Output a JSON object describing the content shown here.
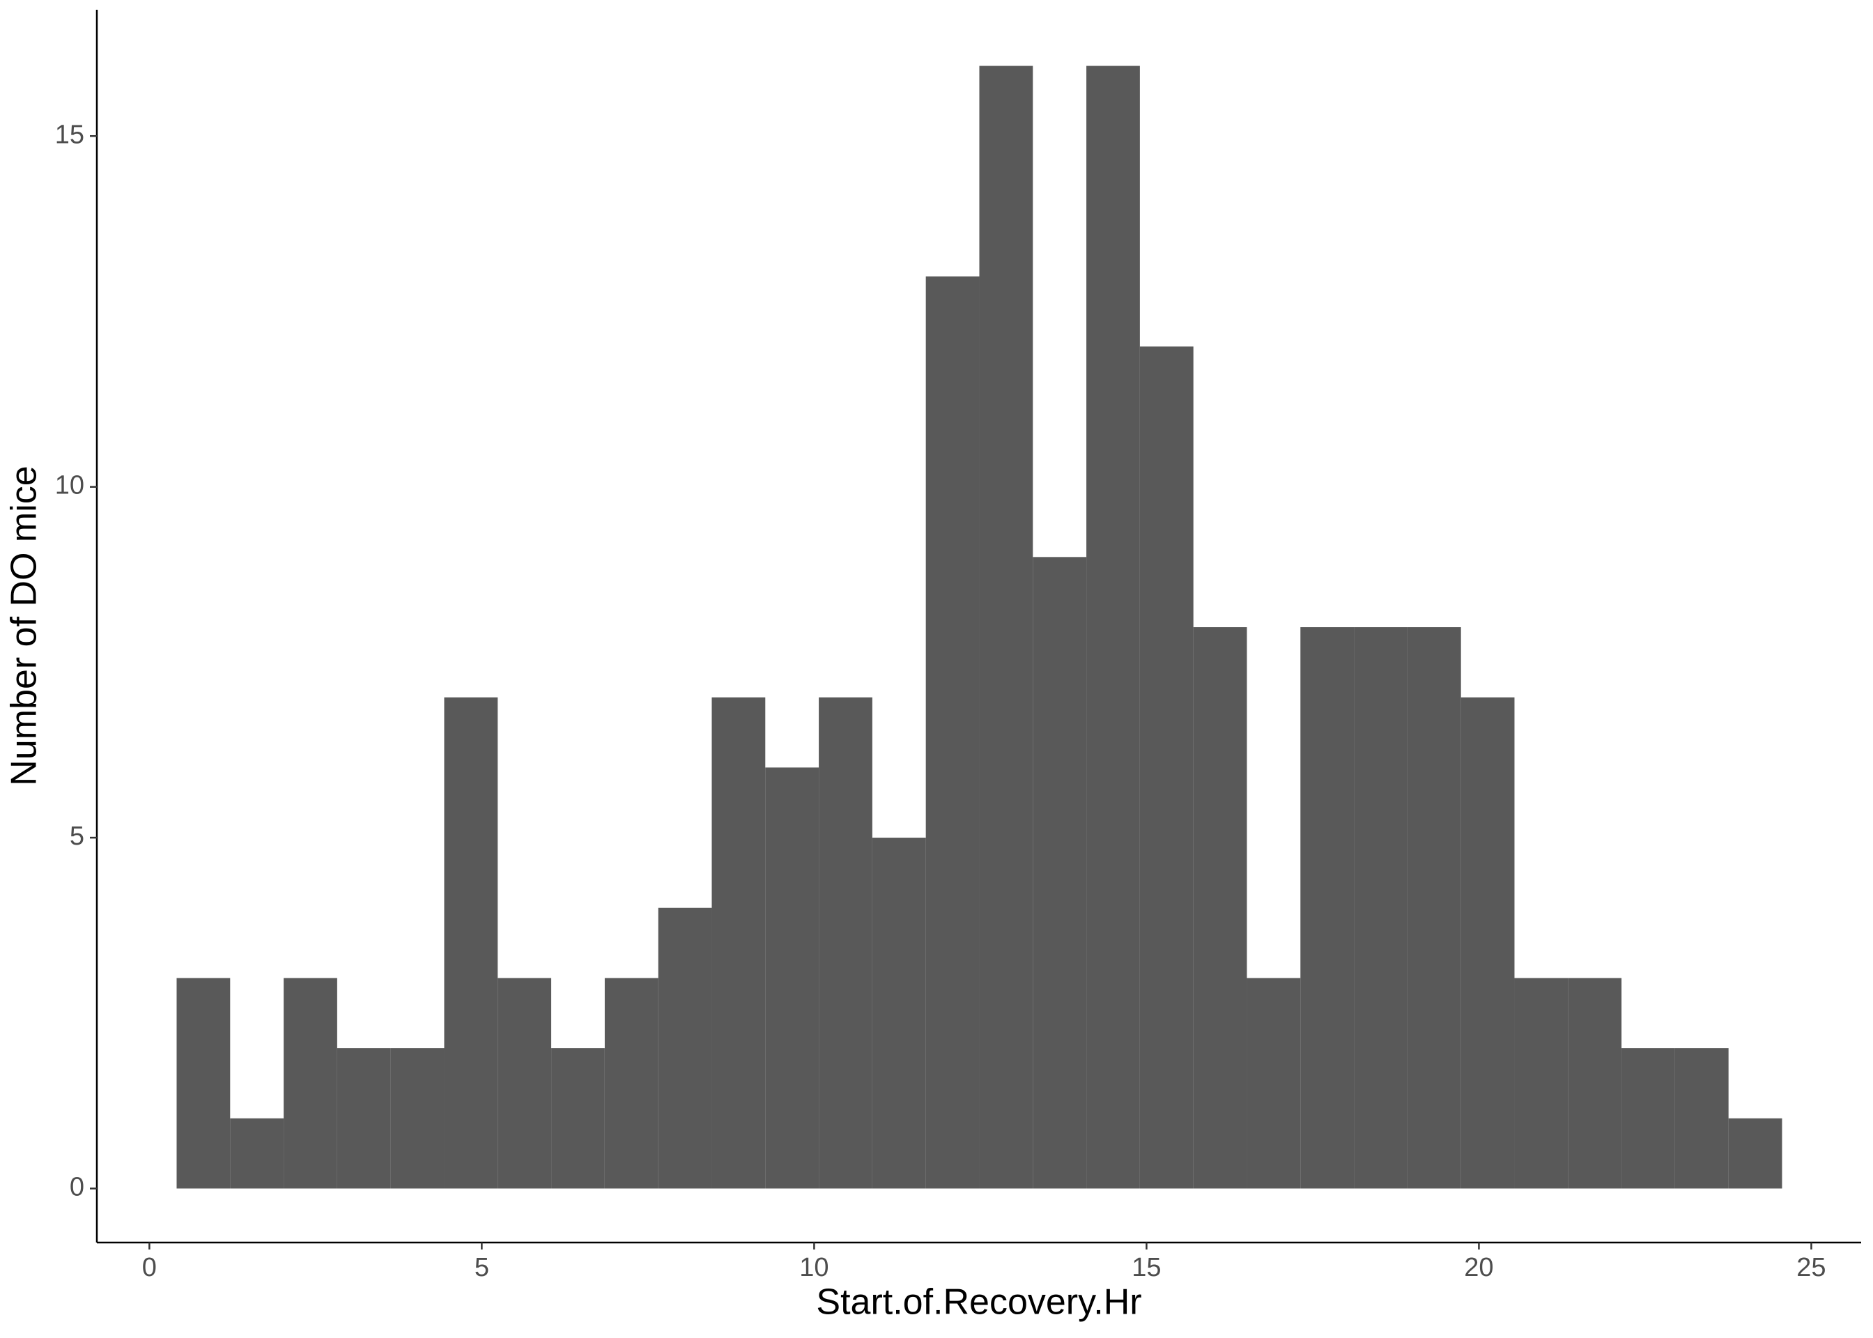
{
  "chart_data": {
    "type": "histogram",
    "x_label": "Start.of.Recovery.Hr",
    "y_label": "Number of DO mice",
    "bins": [
      0.41,
      1.215,
      2.02,
      2.825,
      3.63,
      4.435,
      5.24,
      6.045,
      6.85,
      7.655,
      8.46,
      9.265,
      10.07,
      10.875,
      11.68,
      12.485,
      13.29,
      14.095,
      14.9,
      15.705,
      16.51,
      17.315,
      18.12,
      18.925,
      19.73,
      20.535,
      21.34,
      22.145,
      22.95,
      23.755,
      24.56
    ],
    "values": [
      3,
      1,
      3,
      2,
      2,
      7,
      3,
      2,
      3,
      4,
      7,
      6,
      7,
      5,
      13,
      16,
      9,
      16,
      12,
      8,
      3,
      8,
      8,
      8,
      7,
      3,
      3,
      2,
      2,
      1
    ],
    "color": "#595959",
    "xlim": [
      -0.79,
      25.75
    ],
    "xticks": [
      0,
      5,
      10,
      15,
      20,
      25
    ],
    "ylim": [
      -0.77,
      16.8
    ],
    "yticks": [
      0,
      5,
      10,
      15
    ],
    "grid": false
  }
}
